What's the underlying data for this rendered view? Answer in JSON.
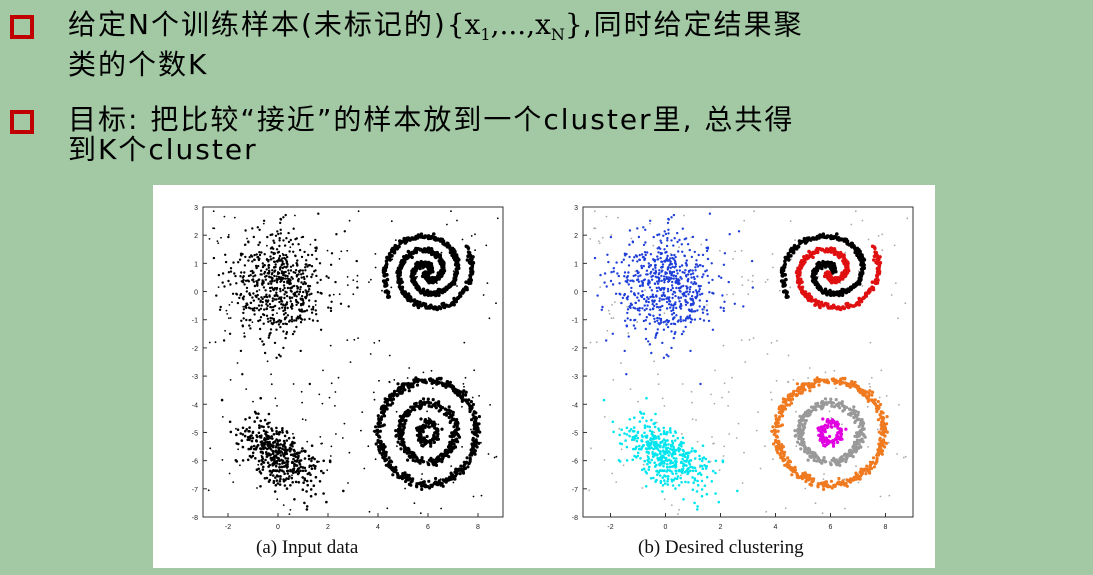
{
  "bullets": [
    {
      "icon": "checkbox-square-icon",
      "line1_prefix": "给定N个训练样本(未标记的)",
      "set_open": "{x",
      "sub1": "1",
      "set_mid": ",...,x",
      "subN": "N",
      "set_close": "}",
      "line1_suffix": ",同时给定结果聚",
      "line2": "类的个数K"
    },
    {
      "icon": "checkbox-square-icon",
      "line1": "目标: 把比较“接近”的样本放到一个cluster里, 总共得",
      "line2": "到K个cluster"
    }
  ],
  "figure": {
    "caption_a": "(a) Input data",
    "caption_b": "(b) Desired clustering",
    "y_ticks": [
      "3",
      "2",
      "1",
      "0",
      "-1",
      "-2",
      "-3",
      "-4",
      "-5",
      "-6",
      "-7",
      "-8"
    ],
    "x_ticks": [
      "-2",
      "0",
      "2",
      "4",
      "6",
      "8"
    ],
    "colors": {
      "input": "#000000",
      "gauss_top": "#1f3fd8",
      "gauss_bottom": "#00e5ee",
      "spiral_outer": "#000000",
      "spiral_inner": "#e01010",
      "ring_outer": "#f07a20",
      "ring_middle": "#999999",
      "ring_inner": "#e000e0",
      "noise": "#aaaaaa"
    }
  }
}
